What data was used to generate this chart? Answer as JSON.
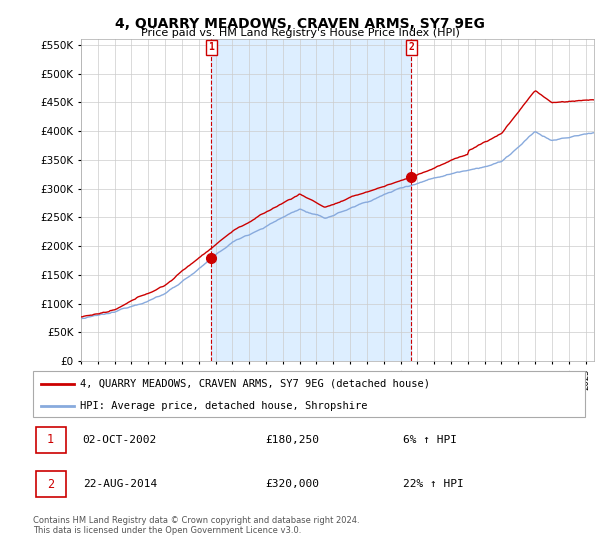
{
  "title": "4, QUARRY MEADOWS, CRAVEN ARMS, SY7 9EG",
  "subtitle": "Price paid vs. HM Land Registry's House Price Index (HPI)",
  "legend_line1": "4, QUARRY MEADOWS, CRAVEN ARMS, SY7 9EG (detached house)",
  "legend_line2": "HPI: Average price, detached house, Shropshire",
  "annotation1_date": "02-OCT-2002",
  "annotation1_price": "£180,250",
  "annotation1_hpi": "6% ↑ HPI",
  "annotation2_date": "22-AUG-2014",
  "annotation2_price": "£320,000",
  "annotation2_hpi": "22% ↑ HPI",
  "footer1": "Contains HM Land Registry data © Crown copyright and database right 2024.",
  "footer2": "This data is licensed under the Open Government Licence v3.0.",
  "price_color": "#cc0000",
  "hpi_color": "#88aadd",
  "shade_color": "#ddeeff",
  "annotation_color": "#cc0000",
  "grid_color": "#cccccc",
  "background_color": "#ffffff",
  "plot_bg_color": "#ffffff",
  "ylim_min": 0,
  "ylim_max": 560000,
  "yticks": [
    0,
    50000,
    100000,
    150000,
    200000,
    250000,
    300000,
    350000,
    400000,
    450000,
    500000,
    550000
  ],
  "sale1_x": 2002.75,
  "sale1_y": 180250,
  "sale2_x": 2014.64,
  "sale2_y": 320000,
  "xmin": 1995,
  "xmax": 2025.5
}
